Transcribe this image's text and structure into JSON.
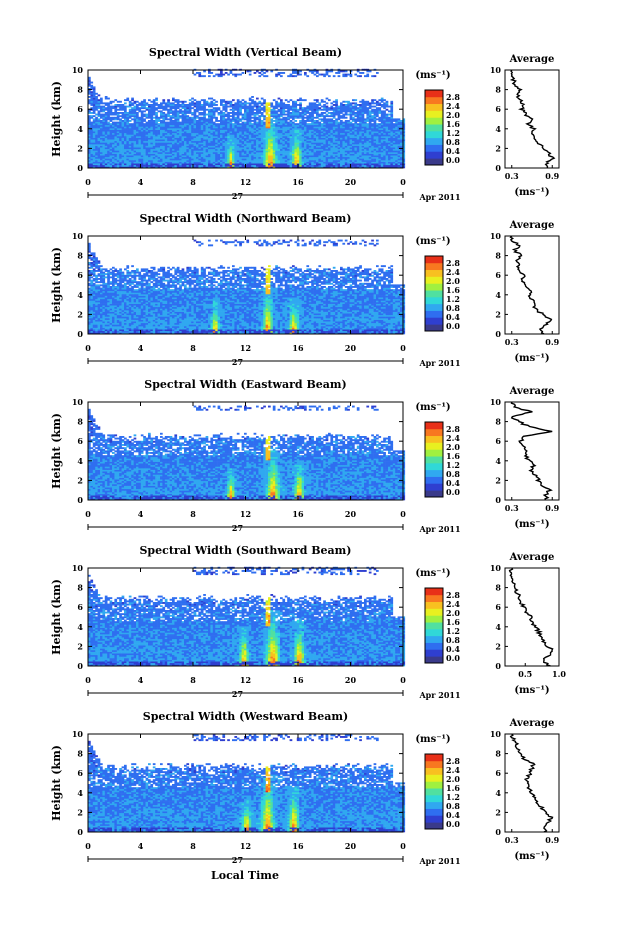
{
  "chart_data": {
    "type": "heatmap",
    "xlabel": "Local Time",
    "date_label": "27",
    "month_year_label": "Apr 2011",
    "x_ticks": [
      "0",
      "4",
      "8",
      "12",
      "16",
      "20",
      "0"
    ],
    "xlim": [
      0,
      24
    ],
    "ylabel": "Height (km)",
    "y_ticks": [
      "0",
      "2",
      "4",
      "6",
      "8",
      "10"
    ],
    "ylim": [
      0,
      10
    ],
    "colorbar": {
      "unit_label": "(ms⁻¹)",
      "ticks": [
        "2.8",
        "2.4",
        "2.0",
        "1.6",
        "1.2",
        "0.8",
        "0.4",
        "0.0"
      ],
      "range": [
        0.0,
        2.8
      ],
      "colors": [
        "#3a3a8a",
        "#2f3fd0",
        "#2f6ef0",
        "#30a8f0",
        "#30d8d8",
        "#50e0a0",
        "#a0f040",
        "#e8f020",
        "#f8c020",
        "#f87820",
        "#e83018"
      ]
    },
    "panels": [
      {
        "title": "Spectral Width (Vertical Beam)",
        "avg_title": "Average",
        "avg_xlabel": "(ms⁻¹)",
        "avg_xticks": [
          "0.3",
          "0.9"
        ],
        "avg_xlim": [
          0.2,
          1.0
        ],
        "avg_profile": [
          [
            0.0,
            0.85
          ],
          [
            0.5,
            0.82
          ],
          [
            1.0,
            0.9
          ],
          [
            1.5,
            0.86
          ],
          [
            2.0,
            0.78
          ],
          [
            2.5,
            0.7
          ],
          [
            3.0,
            0.66
          ],
          [
            3.5,
            0.58
          ],
          [
            4.0,
            0.62
          ],
          [
            4.5,
            0.55
          ],
          [
            5.0,
            0.6
          ],
          [
            5.5,
            0.5
          ],
          [
            6.0,
            0.45
          ],
          [
            6.5,
            0.47
          ],
          [
            7.0,
            0.42
          ],
          [
            7.5,
            0.38
          ],
          [
            8.0,
            0.42
          ],
          [
            8.5,
            0.35
          ],
          [
            9.0,
            0.32
          ],
          [
            9.5,
            0.3
          ],
          [
            10.0,
            0.3
          ]
        ],
        "cloud_top": 6.8,
        "upper_layer": [
          10.0,
          9.2
        ],
        "plumes": [
          [
            13.8,
            4.2,
            0.6
          ],
          [
            15.8,
            3.0,
            0.5
          ],
          [
            10.8,
            2.2,
            0.35
          ]
        ]
      },
      {
        "title": "Spectral Width (Northward Beam)",
        "avg_title": "Average",
        "avg_xlabel": "(ms⁻¹)",
        "avg_xticks": [
          "0.3",
          "0.9"
        ],
        "avg_xlim": [
          0.2,
          1.0
        ],
        "avg_profile": [
          [
            0.0,
            0.78
          ],
          [
            0.5,
            0.72
          ],
          [
            1.0,
            0.8
          ],
          [
            1.5,
            0.88
          ],
          [
            2.0,
            0.76
          ],
          [
            2.5,
            0.66
          ],
          [
            3.0,
            0.62
          ],
          [
            3.5,
            0.6
          ],
          [
            4.0,
            0.55
          ],
          [
            4.5,
            0.58
          ],
          [
            5.0,
            0.5
          ],
          [
            5.5,
            0.44
          ],
          [
            6.0,
            0.48
          ],
          [
            6.5,
            0.42
          ],
          [
            7.0,
            0.4
          ],
          [
            7.5,
            0.36
          ],
          [
            8.0,
            0.45
          ],
          [
            8.5,
            0.34
          ],
          [
            9.0,
            0.4
          ],
          [
            9.5,
            0.32
          ],
          [
            10.0,
            0.3
          ]
        ],
        "cloud_top": 6.6,
        "upper_layer": [
          9.6,
          8.9
        ],
        "plumes": [
          [
            13.6,
            3.8,
            0.5
          ],
          [
            15.6,
            2.6,
            0.45
          ],
          [
            9.6,
            2.6,
            0.35
          ]
        ]
      },
      {
        "title": "Spectral Width (Eastward Beam)",
        "avg_title": "Average",
        "avg_xlabel": "(ms⁻¹)",
        "avg_xticks": [
          "0.3",
          "0.9"
        ],
        "avg_xlim": [
          0.2,
          1.0
        ],
        "avg_profile": [
          [
            0.0,
            0.82
          ],
          [
            0.5,
            0.8
          ],
          [
            1.0,
            0.86
          ],
          [
            1.5,
            0.74
          ],
          [
            2.0,
            0.7
          ],
          [
            2.5,
            0.66
          ],
          [
            3.0,
            0.6
          ],
          [
            3.5,
            0.62
          ],
          [
            4.0,
            0.56
          ],
          [
            4.5,
            0.5
          ],
          [
            5.0,
            0.54
          ],
          [
            5.5,
            0.46
          ],
          [
            6.0,
            0.44
          ],
          [
            6.5,
            0.48
          ],
          [
            7.0,
            0.9
          ],
          [
            7.5,
            0.55
          ],
          [
            8.0,
            0.4
          ],
          [
            8.5,
            0.3
          ],
          [
            9.0,
            0.6
          ],
          [
            9.5,
            0.34
          ],
          [
            10.0,
            0.3
          ]
        ],
        "cloud_top": 6.4,
        "upper_layer": [
          9.6,
          9.0
        ],
        "plumes": [
          [
            14.0,
            4.0,
            0.6
          ],
          [
            16.0,
            3.0,
            0.45
          ],
          [
            10.8,
            2.2,
            0.35
          ]
        ]
      },
      {
        "title": "Spectral Width (Southward Beam)",
        "avg_title": "Average",
        "avg_xlabel": "(ms⁻¹)",
        "avg_xticks": [
          "0.5",
          "1.0"
        ],
        "avg_xlim": [
          0.2,
          1.0
        ],
        "avg_profile": [
          [
            0.0,
            0.85
          ],
          [
            0.5,
            0.78
          ],
          [
            1.0,
            0.82
          ],
          [
            1.5,
            0.92
          ],
          [
            2.0,
            0.84
          ],
          [
            2.5,
            0.78
          ],
          [
            3.0,
            0.74
          ],
          [
            3.5,
            0.7
          ],
          [
            4.0,
            0.66
          ],
          [
            4.5,
            0.6
          ],
          [
            5.0,
            0.58
          ],
          [
            5.5,
            0.52
          ],
          [
            6.0,
            0.48
          ],
          [
            6.5,
            0.44
          ],
          [
            7.0,
            0.42
          ],
          [
            7.5,
            0.38
          ],
          [
            8.0,
            0.36
          ],
          [
            8.5,
            0.33
          ],
          [
            9.0,
            0.3
          ],
          [
            9.5,
            0.28
          ],
          [
            10.0,
            0.3
          ]
        ],
        "cloud_top": 6.8,
        "upper_layer": [
          10.0,
          9.3
        ],
        "plumes": [
          [
            14.0,
            4.6,
            0.65
          ],
          [
            16.0,
            3.6,
            0.5
          ],
          [
            11.8,
            3.0,
            0.4
          ]
        ]
      },
      {
        "title": "Spectral Width (Westward Beam)",
        "avg_title": "Average",
        "avg_xlabel": "(ms⁻¹)",
        "avg_xticks": [
          "0.3",
          "0.9"
        ],
        "avg_xlim": [
          0.2,
          1.0
        ],
        "avg_profile": [
          [
            0.0,
            0.8
          ],
          [
            0.5,
            0.76
          ],
          [
            1.0,
            0.84
          ],
          [
            1.5,
            0.88
          ],
          [
            2.0,
            0.8
          ],
          [
            2.5,
            0.74
          ],
          [
            3.0,
            0.68
          ],
          [
            3.5,
            0.64
          ],
          [
            4.0,
            0.6
          ],
          [
            4.5,
            0.56
          ],
          [
            5.0,
            0.55
          ],
          [
            5.5,
            0.52
          ],
          [
            6.0,
            0.58
          ],
          [
            6.5,
            0.6
          ],
          [
            7.0,
            0.62
          ],
          [
            7.5,
            0.48
          ],
          [
            8.0,
            0.45
          ],
          [
            8.5,
            0.4
          ],
          [
            9.0,
            0.36
          ],
          [
            9.5,
            0.32
          ],
          [
            10.0,
            0.3
          ]
        ],
        "cloud_top": 6.6,
        "upper_layer": [
          9.8,
          9.2
        ],
        "plumes": [
          [
            13.6,
            4.8,
            0.6
          ],
          [
            15.6,
            3.6,
            0.5
          ],
          [
            12.0,
            2.4,
            0.4
          ]
        ]
      }
    ]
  }
}
